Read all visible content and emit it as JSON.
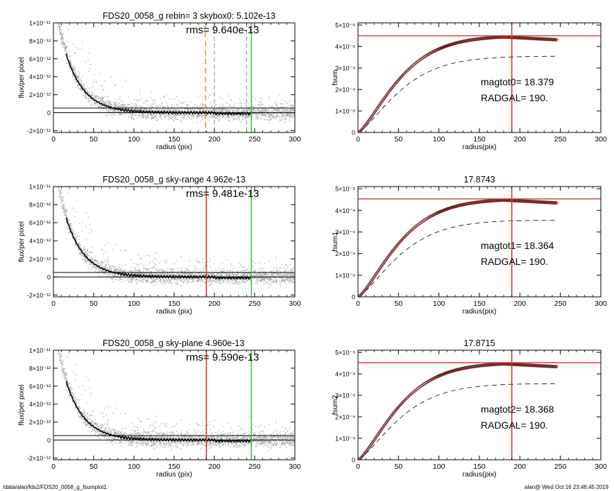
{
  "footer": {
    "path": "/data/alan/fds2/FDS20_0058_g_fsumplot1",
    "user_date": "alan@  Wed Oct 16 23:46:45 2019"
  },
  "colors": {
    "scatter": "#a9a9a9",
    "profile": "#000000",
    "orange": "#f0962a",
    "red": "#e0302a",
    "green": "#33cc33",
    "curve": "#000000",
    "markers": "#6b2020"
  },
  "chart_data": [
    {
      "id": "left1",
      "type": "scatter",
      "title": "FDS20_0058_g rebin= 3    skybox0:  5.102e-13",
      "rms_text": "rms= 9.640e-13",
      "xlabel": "radius (pix)",
      "ylabel": "flux/per pixel",
      "xlim": [
        0,
        300
      ],
      "ylim": [
        -2.2e-12,
        1e-11
      ],
      "xticks": [
        0,
        50,
        100,
        150,
        200,
        250,
        300
      ],
      "yticks": [
        -2e-12,
        0,
        2e-12,
        4e-12,
        6e-12,
        8e-12,
        1e-11
      ],
      "ytick_labels": [
        "-2×10⁻¹²",
        "0",
        "2×10⁻¹²",
        "4×10⁻¹²",
        "6×10⁻¹²",
        "8×10⁻¹²",
        "1×10⁻¹¹"
      ],
      "hlines": [
        0,
        5.1e-13
      ],
      "vlines": [
        {
          "x": 189,
          "color": "orange",
          "style": "dashed"
        },
        {
          "x": 200,
          "color": "gray",
          "style": "dashed"
        },
        {
          "x": 240,
          "color": "gray",
          "style": "dashed"
        },
        {
          "x": 246,
          "color": "green",
          "style": "solid"
        }
      ]
    },
    {
      "id": "left2",
      "type": "scatter",
      "title": "FDS20_0058_g sky-range  4.962e-13",
      "rms_text": "rms= 9.481e-13",
      "xlabel": "radius (pix)",
      "ylabel": "flux/per pixel",
      "xlim": [
        0,
        300
      ],
      "ylim": [
        -2.2e-12,
        1e-11
      ],
      "xticks": [
        0,
        50,
        100,
        150,
        200,
        250,
        300
      ],
      "yticks": [
        -2e-12,
        0,
        2e-12,
        4e-12,
        6e-12,
        8e-12,
        1e-11
      ],
      "ytick_labels": [
        "-2×10⁻¹²",
        "0",
        "2×10⁻¹²",
        "4×10⁻¹²",
        "6×10⁻¹²",
        "8×10⁻¹²",
        "1×10⁻¹¹"
      ],
      "hlines": [
        0,
        4.96e-13
      ],
      "vlines": [
        {
          "x": 190,
          "color": "red",
          "style": "solid"
        },
        {
          "x": 246,
          "color": "green",
          "style": "solid"
        }
      ]
    },
    {
      "id": "left3",
      "type": "scatter",
      "title": "FDS20_0058_g sky-plane  4.960e-13",
      "rms_text": "rms= 9.590e-13",
      "xlabel": "radius (pix)",
      "ylabel": "flux/per pixel",
      "xlim": [
        0,
        300
      ],
      "ylim": [
        -2.2e-12,
        1e-11
      ],
      "xticks": [
        0,
        50,
        100,
        150,
        200,
        250,
        300
      ],
      "yticks": [
        -2e-12,
        0,
        2e-12,
        4e-12,
        6e-12,
        8e-12,
        1e-11
      ],
      "ytick_labels": [
        "-2×10⁻¹²",
        "0",
        "2×10⁻¹²",
        "4×10⁻¹²",
        "6×10⁻¹²",
        "8×10⁻¹²",
        "1×10⁻¹¹"
      ],
      "hlines": [
        0,
        4.96e-13
      ],
      "vlines": [
        {
          "x": 190,
          "color": "red",
          "style": "solid"
        },
        {
          "x": 246,
          "color": "green",
          "style": "solid"
        }
      ]
    },
    {
      "id": "right1",
      "type": "line",
      "title": "",
      "xlabel": "radius(pix)",
      "ylabel": "fsum",
      "xlim": [
        0,
        300
      ],
      "ylim": [
        0,
        5.1e-08
      ],
      "xticks": [
        0,
        50,
        100,
        150,
        200,
        250,
        300
      ],
      "yticks": [
        0,
        1e-08,
        2e-08,
        3e-08,
        4e-08,
        5e-08
      ],
      "ytick_labels": [
        "0",
        "1×10⁻⁸",
        "2×10⁻⁸",
        "3×10⁻⁸",
        "4×10⁻⁸",
        "5×10⁻⁸"
      ],
      "hline": 4.5e-08,
      "vline": 190,
      "mag_text": "magtot0=  18.379",
      "radgal_text": "RADGAL=    190.",
      "saturation": 4.5e-08,
      "dashed_saturation": 3.55e-08
    },
    {
      "id": "right2",
      "type": "line",
      "title": "17.8743",
      "xlabel": "radius(pix)",
      "ylabel": "fsum1",
      "xlim": [
        0,
        300
      ],
      "ylim": [
        0,
        5.1e-08
      ],
      "xticks": [
        0,
        50,
        100,
        150,
        200,
        250,
        300
      ],
      "yticks": [
        0,
        1e-08,
        2e-08,
        3e-08,
        4e-08,
        5e-08
      ],
      "ytick_labels": [
        "0",
        "1×10⁻⁸",
        "2×10⁻⁸",
        "3×10⁻⁸",
        "4×10⁻⁸",
        "5×10⁻⁸"
      ],
      "hline": 4.53e-08,
      "vline": 190,
      "mag_text": "magtot1=  18.364",
      "radgal_text": "RADGAL=    190.",
      "saturation": 4.53e-08,
      "dashed_saturation": 3.55e-08
    },
    {
      "id": "right3",
      "type": "line",
      "title": "17.8715",
      "xlabel": "radius(pix)",
      "ylabel": "fsum2",
      "xlim": [
        0,
        300
      ],
      "ylim": [
        0,
        5.1e-08
      ],
      "xticks": [
        0,
        50,
        100,
        150,
        200,
        250,
        300
      ],
      "yticks": [
        0,
        1e-08,
        2e-08,
        3e-08,
        4e-08,
        5e-08
      ],
      "ytick_labels": [
        "0",
        "1×10⁻⁸",
        "2×10⁻⁸",
        "3×10⁻⁸",
        "4×10⁻⁸",
        "5×10⁻⁸"
      ],
      "hline": 4.52e-08,
      "vline": 190,
      "mag_text": "magtot2=  18.368",
      "radgal_text": "RADGAL=    190.",
      "saturation": 4.52e-08,
      "dashed_saturation": 3.55e-08
    }
  ]
}
